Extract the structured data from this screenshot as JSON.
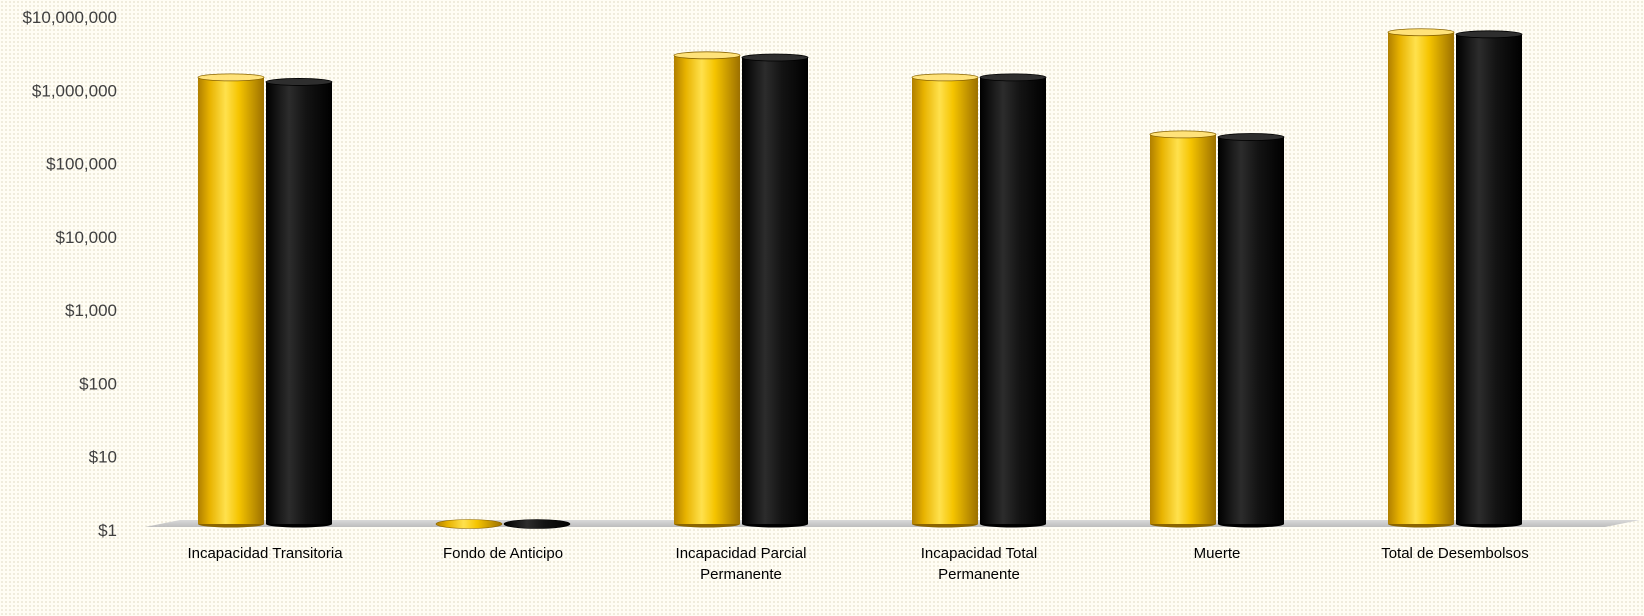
{
  "chart_data": {
    "type": "bar",
    "scale": "log",
    "ylim": [
      1,
      10000000
    ],
    "yticks": [
      "$1",
      "$10",
      "$100",
      "$1,000",
      "$10,000",
      "$100,000",
      "$1,000,000",
      "$10,000,000"
    ],
    "categories": [
      [
        "Incapacidad Transitoria"
      ],
      [
        "Fondo de Anticipo"
      ],
      [
        "Incapacidad Parcial",
        "Permanente"
      ],
      [
        "Incapacidad Total",
        "Permanente"
      ],
      [
        "Muerte"
      ],
      [
        "Total de Desembolsos"
      ]
    ],
    "series": [
      {
        "color": "#f2c200",
        "values": [
          1500000,
          1,
          3000000,
          1500000,
          250000,
          6200000
        ]
      },
      {
        "color": "#111111",
        "values": [
          1300000,
          1,
          2800000,
          1500000,
          230000,
          5800000
        ]
      }
    ],
    "grid": false,
    "legend": "none",
    "title": "",
    "xlabel": "",
    "ylabel": ""
  }
}
